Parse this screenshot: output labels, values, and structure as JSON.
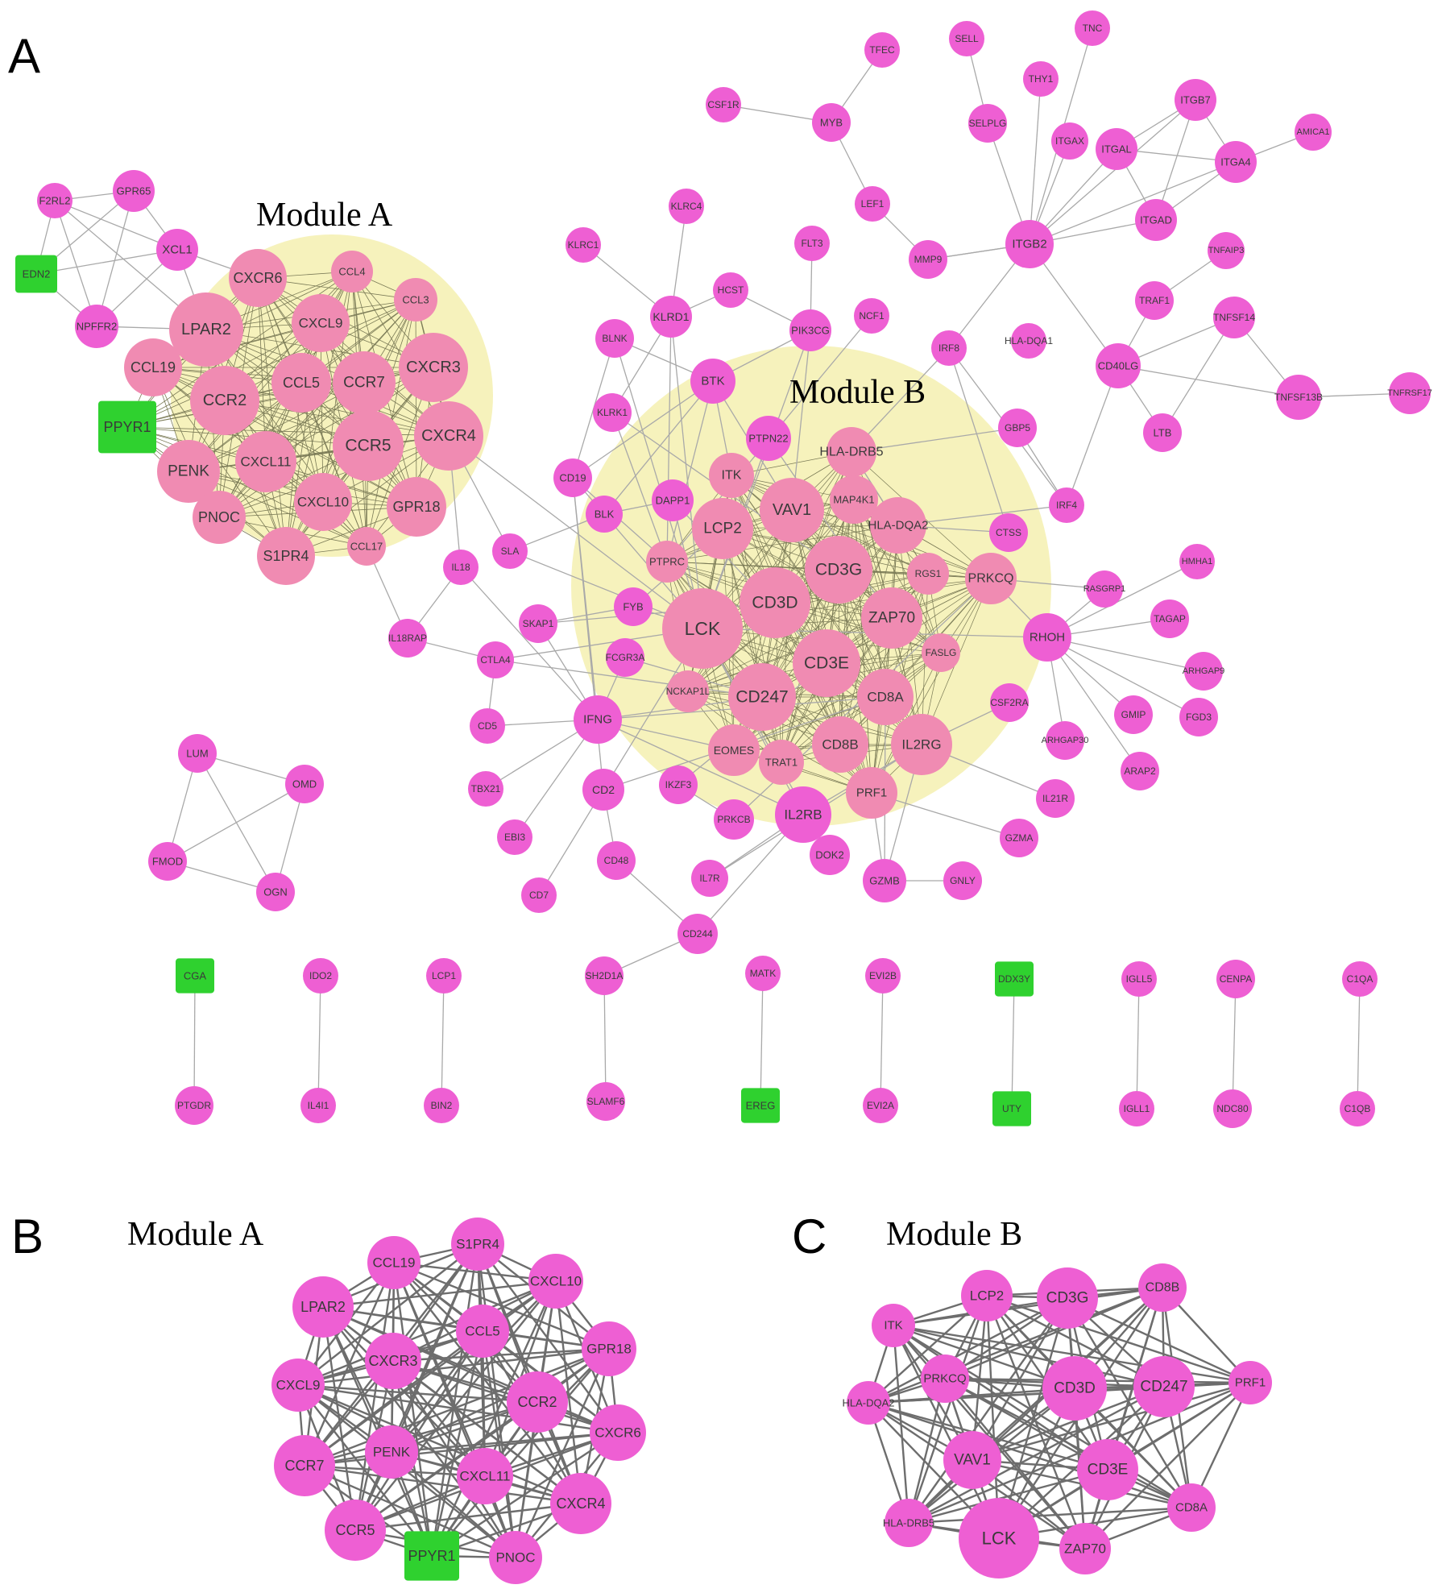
{
  "colors": {
    "gene": "#ee5fd3",
    "green": "#2fd12f",
    "module": "#f5f0b0",
    "edge": "#a9a9a9",
    "edge_dark": "#6d6d6d"
  },
  "panels": [
    {
      "letter": "A",
      "title": "Module A",
      "title2": "Module B"
    },
    {
      "letter": "B",
      "title": "Module A"
    },
    {
      "letter": "C",
      "title": "Module B"
    }
  ],
  "panel_a": {
    "module_a_genes": [
      "CXCR6",
      "CCL4",
      "CCL3",
      "LPAR2",
      "CXCL9",
      "CCL19",
      "CCR2",
      "CCL5",
      "CCR7",
      "CXCR3",
      "PPYR1",
      "CCR5",
      "CXCR4",
      "PENK",
      "CXCL11",
      "PNOC",
      "CXCL10",
      "GPR18",
      "S1PR4",
      "CCL17"
    ],
    "module_b_genes": [
      "ITK",
      "VAV1",
      "LCP2",
      "MAP4K1",
      "HLA-DQA2",
      "CD3G",
      "RGS1",
      "PTPRC",
      "LCK",
      "CD3D",
      "ZAP70",
      "FASLG",
      "CD3E",
      "CD247",
      "CD8A",
      "NCKAP1L",
      "EOMES",
      "CD8B",
      "IL2RG",
      "TRAT1",
      "PRF1",
      "HLA-DRB5",
      "PRKCQ"
    ],
    "other_genes": [
      "F2RL2",
      "GPR65",
      "XCL1",
      "EDN2",
      "NPFFR2",
      "TFEC",
      "SELL",
      "TNC",
      "CSF1R",
      "MYB",
      "THY1",
      "ITGB7",
      "SELPLG",
      "ITGAX",
      "ITGAL",
      "AMICA1",
      "ITGA4",
      "LEF1",
      "ITGAD",
      "KLRC4",
      "KLRC1",
      "FLT3",
      "ITGB2",
      "TNFAIP3",
      "MMP9",
      "HCST",
      "TRAF1",
      "KLRD1",
      "PIK3CG",
      "NCF1",
      "TNFSF14",
      "BLNK",
      "IRF8",
      "HLA-DQA1",
      "CD40LG",
      "BTK",
      "TNFSF13B",
      "TNFRSF17",
      "KLRK1",
      "PTPN22",
      "GBP5",
      "LTB",
      "CD19",
      "IRF4",
      "DAPP1",
      "BLK",
      "CTSS",
      "SLA",
      "IL18",
      "HMHA1",
      "RASGRP1",
      "FYB",
      "SKAP1",
      "TAGAP",
      "IL18RAP",
      "RHOH",
      "CTLA4",
      "FCGR3A",
      "ARHGAP9",
      "CSF2RA",
      "IFNG",
      "CD5",
      "GMIP",
      "FGD3",
      "ARHGAP30",
      "ARAP2",
      "TBX21",
      "IKZF3",
      "CD2",
      "IL21R",
      "EBI3",
      "PRKCB",
      "IL2RB",
      "GZMA",
      "CD48",
      "DOK2",
      "IL7R",
      "GZMB",
      "GNLY",
      "CD7",
      "CD244",
      "LUM",
      "OMD",
      "FMOD",
      "OGN"
    ],
    "pairs": [
      [
        "CGA",
        "PTGDR"
      ],
      [
        "IDO2",
        "IL4I1"
      ],
      [
        "LCP1",
        "BIN2"
      ],
      [
        "SH2D1A",
        "SLAMF6"
      ],
      [
        "MATK",
        "EREG"
      ],
      [
        "EVI2B",
        "EVI2A"
      ],
      [
        "DDX3Y",
        "UTY"
      ],
      [
        "IGLL5",
        "IGLL1"
      ],
      [
        "CENPA",
        "NDC80"
      ],
      [
        "C1QA",
        "C1QB"
      ]
    ],
    "green_genes": [
      "EDN2",
      "PPYR1",
      "CGA",
      "EREG",
      "DDX3Y",
      "UTY"
    ]
  },
  "panel_b": {
    "genes": [
      "S1PR4",
      "CCL19",
      "CXCL10",
      "LPAR2",
      "GPR18",
      "CCL5",
      "CXCR3",
      "CCR2",
      "CXCL9",
      "CXCR6",
      "PENK",
      "CCR7",
      "CXCL11",
      "CXCR4",
      "CCR5",
      "PPYR1",
      "PNOC"
    ],
    "green_genes": [
      "PPYR1"
    ]
  },
  "panel_c": {
    "genes": [
      "LCP2",
      "CD3G",
      "CD8B",
      "ITK",
      "PRKCQ",
      "CD3D",
      "CD247",
      "PRF1",
      "HLA-DQA2",
      "VAV1",
      "CD3E",
      "HLA-DRB5",
      "LCK",
      "ZAP70",
      "CD8A"
    ],
    "green_genes": []
  }
}
